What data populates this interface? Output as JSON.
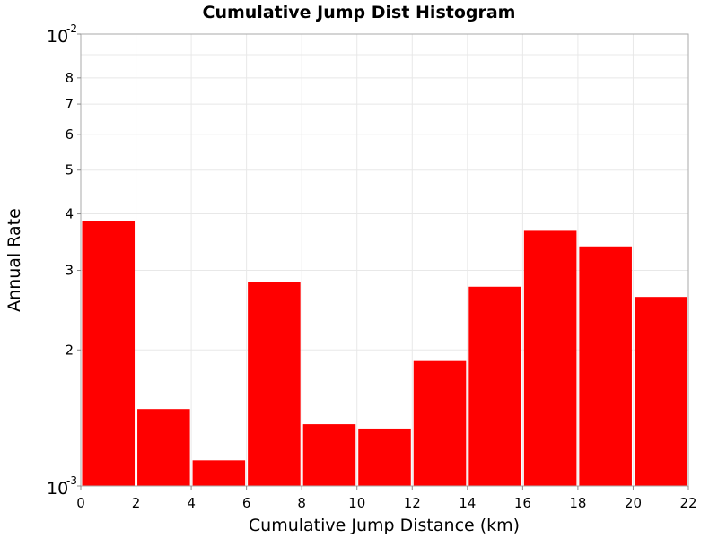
{
  "chart_data": {
    "type": "bar",
    "title": "Cumulative Jump Dist Histogram",
    "xlabel": "Cumulative Jump Distance (km)",
    "ylabel": "Annual Rate",
    "y_scale": "log",
    "xlim": [
      0,
      22
    ],
    "ylim": [
      0.001,
      0.01
    ],
    "grid": true,
    "bar_color": "#ff0000",
    "x_ticks": [
      "0",
      "2",
      "4",
      "6",
      "8",
      "10",
      "12",
      "14",
      "16",
      "18",
      "20",
      "22"
    ],
    "y_ticks": [
      {
        "value": 0.001,
        "base": "10",
        "exp": "-3"
      },
      {
        "value": 0.002,
        "label": "2"
      },
      {
        "value": 0.003,
        "label": "3"
      },
      {
        "value": 0.004,
        "label": "4"
      },
      {
        "value": 0.005,
        "label": "5"
      },
      {
        "value": 0.006,
        "label": "6"
      },
      {
        "value": 0.007,
        "label": "7"
      },
      {
        "value": 0.008,
        "label": "8"
      },
      {
        "value": 0.01,
        "base": "10",
        "exp": "-2"
      }
    ],
    "bins": [
      {
        "x_start": 0,
        "x_end": 2,
        "value": 0.00385
      },
      {
        "x_start": 2,
        "x_end": 4,
        "value": 0.00148
      },
      {
        "x_start": 4,
        "x_end": 6,
        "value": 0.00114
      },
      {
        "x_start": 6,
        "x_end": 8,
        "value": 0.00283
      },
      {
        "x_start": 8,
        "x_end": 10,
        "value": 0.00137
      },
      {
        "x_start": 10,
        "x_end": 12,
        "value": 0.00134
      },
      {
        "x_start": 12,
        "x_end": 14,
        "value": 0.00189
      },
      {
        "x_start": 14,
        "x_end": 16,
        "value": 0.00276
      },
      {
        "x_start": 16,
        "x_end": 18,
        "value": 0.00367
      },
      {
        "x_start": 18,
        "x_end": 20,
        "value": 0.00339
      },
      {
        "x_start": 20,
        "x_end": 22,
        "value": 0.00262
      }
    ]
  }
}
